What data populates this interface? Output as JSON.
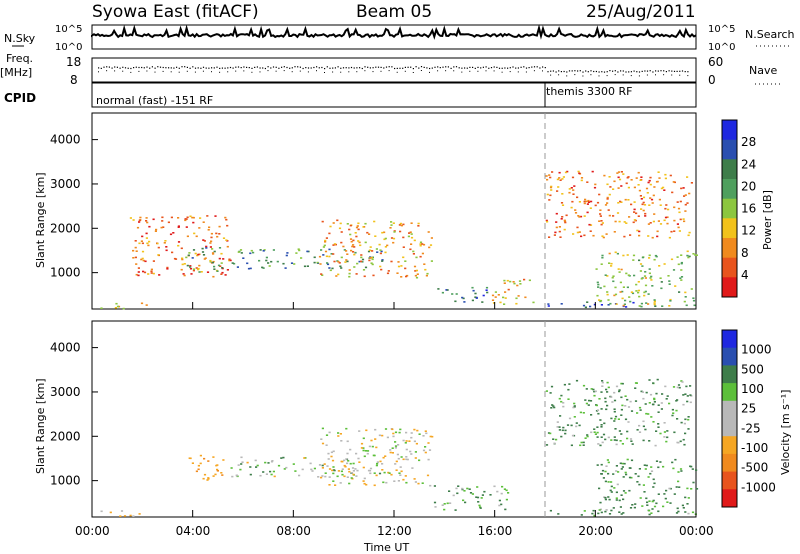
{
  "header": {
    "station": "Syowa East (fitACF)",
    "beam": "Beam 05",
    "date": "25/Aug/2011"
  },
  "top_panels": {
    "nsky_label": "N.Sky",
    "nsky_tick_hi": "10^5",
    "nsky_tick_lo": "10^0",
    "nsearch_label": "N.Search",
    "freq_label": "Freq.",
    "freq_unit": "[MHz]",
    "freq_tick_hi": "18",
    "freq_tick_lo": "8",
    "nave_tick_hi": "60",
    "nave_tick_lo": "0",
    "nave_label": "Nave",
    "cpid_label": "CPID",
    "cpid_mode_1": "normal (fast) -151 RF",
    "cpid_mode_2": "themis 3300 RF"
  },
  "x_axis": {
    "label": "Time UT",
    "ticks": [
      "00:00",
      "04:00",
      "08:00",
      "12:00",
      "16:00",
      "20:00",
      "00:00"
    ],
    "range_hours": [
      0,
      24
    ],
    "mode_change_hour": 18
  },
  "colors": {
    "power_scale": [
      "#1f28e0",
      "#2a4fb0",
      "#3e7d4a",
      "#4f9f5e",
      "#8cc63f",
      "#f2c21b",
      "#f08a1e",
      "#e8541d",
      "#e01a1a"
    ],
    "velocity_scale": [
      "#1f28e0",
      "#2a4fb0",
      "#3e7d4a",
      "#5cbf3a",
      "#b8b8b8",
      "#b8b8b8",
      "#f5a623",
      "#f08a1e",
      "#e8541d",
      "#e01a1a"
    ]
  },
  "chart_data": [
    {
      "type": "heatmap",
      "title": "Power",
      "xlabel": "Time UT",
      "ylabel": "Slant Range [km]",
      "ylim": [
        180,
        4600
      ],
      "y_ticks": [
        "1000",
        "2000",
        "3000",
        "4000"
      ],
      "colorbar_label": "Power [dB]",
      "colorbar_ticks": [
        "4",
        "8",
        "12",
        "16",
        "20",
        "24",
        "28"
      ],
      "echo_regions": [
        {
          "t_start": 0.3,
          "t_end": 2.2,
          "r_min": 200,
          "r_max": 350,
          "value_db": 10
        },
        {
          "t_start": 1.5,
          "t_end": 5.5,
          "r_min": 900,
          "r_max": 2300,
          "value_db": 5
        },
        {
          "t_start": 3.7,
          "t_end": 5.2,
          "r_min": 1000,
          "r_max": 1600,
          "value_db": 18
        },
        {
          "t_start": 5.5,
          "t_end": 11.5,
          "r_min": 1100,
          "r_max": 1550,
          "value_db": 20
        },
        {
          "t_start": 9.0,
          "t_end": 13.5,
          "r_min": 900,
          "r_max": 2200,
          "value_db": 8
        },
        {
          "t_start": 13.5,
          "t_end": 15.8,
          "r_min": 350,
          "r_max": 700,
          "value_db": 22
        },
        {
          "t_start": 15.8,
          "t_end": 17.5,
          "r_min": 300,
          "r_max": 900,
          "value_db": 9
        },
        {
          "t_start": 18.0,
          "t_end": 21.5,
          "r_min": 220,
          "r_max": 360,
          "value_db": 26
        },
        {
          "t_start": 20.0,
          "t_end": 24.0,
          "r_min": 250,
          "r_max": 1500,
          "value_db": 14
        },
        {
          "t_start": 18.0,
          "t_end": 23.8,
          "r_min": 1800,
          "r_max": 3300,
          "value_db": 6
        }
      ]
    },
    {
      "type": "heatmap",
      "title": "Velocity",
      "xlabel": "Time UT",
      "ylabel": "Slant Range [km]",
      "ylim": [
        180,
        4600
      ],
      "y_ticks": [
        "1000",
        "2000",
        "3000",
        "4000"
      ],
      "colorbar_label": "Velocity [m s⁻¹]",
      "colorbar_ticks": [
        "1000",
        "500",
        "100",
        "25",
        "-25",
        "-100",
        "-500",
        "-1000"
      ],
      "echo_regions": [
        {
          "t_start": 0.3,
          "t_end": 2.2,
          "r_min": 200,
          "r_max": 350,
          "value_ms": -150
        },
        {
          "t_start": 3.7,
          "t_end": 5.2,
          "r_min": 1000,
          "r_max": 1600,
          "value_ms": -400
        },
        {
          "t_start": 5.5,
          "t_end": 11.5,
          "r_min": 1100,
          "r_max": 1550,
          "value_ms": 5
        },
        {
          "t_start": 9.0,
          "t_end": 13.5,
          "r_min": 900,
          "r_max": 2200,
          "value_ms": -50
        },
        {
          "t_start": 13.5,
          "t_end": 16.5,
          "r_min": 350,
          "r_max": 900,
          "value_ms": 80
        },
        {
          "t_start": 18.0,
          "t_end": 21.5,
          "r_min": 220,
          "r_max": 360,
          "value_ms": 200
        },
        {
          "t_start": 20.0,
          "t_end": 24.0,
          "r_min": 250,
          "r_max": 1500,
          "value_ms": 150
        },
        {
          "t_start": 18.0,
          "t_end": 23.8,
          "r_min": 1800,
          "r_max": 3300,
          "value_ms": 120
        }
      ]
    }
  ]
}
